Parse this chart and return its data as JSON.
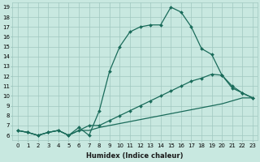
{
  "line1": {
    "x": [
      0,
      1,
      2,
      3,
      4,
      5,
      6,
      7,
      8,
      9,
      10,
      11,
      12,
      13,
      14,
      15,
      16,
      17,
      18,
      19,
      20,
      21,
      22,
      23
    ],
    "y": [
      6.5,
      6.3,
      6.0,
      6.3,
      6.5,
      6.0,
      6.8,
      6.0,
      8.5,
      12.5,
      15.0,
      16.5,
      17.0,
      17.2,
      17.2,
      19.0,
      18.5,
      17.0,
      14.8,
      14.2,
      12.1,
      10.8,
      10.3,
      9.8
    ]
  },
  "line2": {
    "x": [
      0,
      1,
      2,
      3,
      4,
      5,
      6,
      7,
      8,
      9,
      10,
      11,
      12,
      13,
      14,
      15,
      16,
      17,
      18,
      19,
      20,
      21,
      22,
      23
    ],
    "y": [
      6.5,
      6.3,
      6.0,
      6.3,
      6.5,
      6.0,
      6.5,
      7.0,
      7.0,
      7.5,
      8.0,
      8.5,
      9.0,
      9.5,
      10.0,
      10.5,
      11.0,
      11.5,
      11.8,
      12.2,
      12.1,
      11.0,
      10.3,
      9.8
    ]
  },
  "line3": {
    "x": [
      0,
      1,
      2,
      3,
      4,
      5,
      6,
      7,
      8,
      9,
      10,
      11,
      12,
      13,
      14,
      15,
      16,
      17,
      18,
      19,
      20,
      21,
      22,
      23
    ],
    "y": [
      6.5,
      6.3,
      6.0,
      6.3,
      6.5,
      6.0,
      6.5,
      6.5,
      6.8,
      7.0,
      7.2,
      7.4,
      7.6,
      7.8,
      8.0,
      8.2,
      8.4,
      8.6,
      8.8,
      9.0,
      9.2,
      9.5,
      9.8,
      9.8
    ]
  },
  "line_color": "#1a6b5a",
  "bg_color": "#c8e8e0",
  "grid_color": "#a0c8c0",
  "xlabel": "Humidex (Indice chaleur)",
  "xlim": [
    -0.5,
    23.5
  ],
  "ylim": [
    5.5,
    19.5
  ],
  "xticks": [
    0,
    1,
    2,
    3,
    4,
    5,
    6,
    7,
    8,
    9,
    10,
    11,
    12,
    13,
    14,
    15,
    16,
    17,
    18,
    19,
    20,
    21,
    22,
    23
  ],
  "yticks": [
    6,
    7,
    8,
    9,
    10,
    11,
    12,
    13,
    14,
    15,
    16,
    17,
    18,
    19
  ],
  "marker": "D",
  "markersize": 2,
  "linewidth": 0.9,
  "xlabel_fontsize": 6.0,
  "tick_fontsize": 5.0
}
